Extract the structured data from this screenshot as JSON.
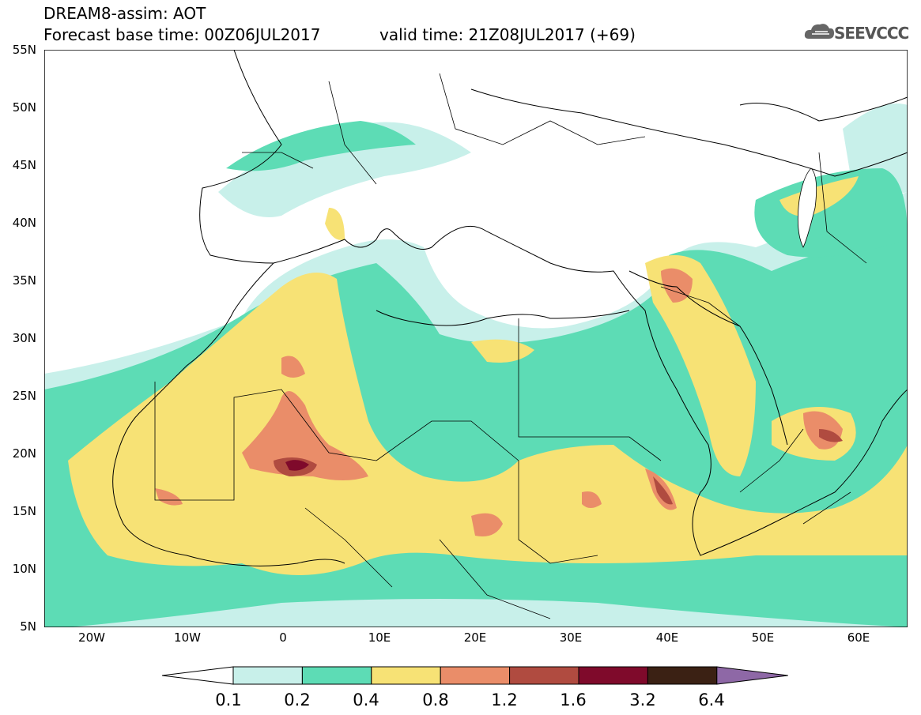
{
  "header": {
    "line1": "DREAM8-assim: AOT",
    "line2": "Forecast base time: 00Z06JUL2017",
    "valid": "valid time: 21Z08JUL2017 (+69)",
    "logo_text": "SEEVCCC"
  },
  "y_ticks": [
    "55N",
    "50N",
    "45N",
    "40N",
    "35N",
    "30N",
    "25N",
    "20N",
    "15N",
    "10N",
    "5N"
  ],
  "x_ticks": [
    "20W",
    "10W",
    "0",
    "10E",
    "20E",
    "30E",
    "40E",
    "50E",
    "60E"
  ],
  "colorbar": {
    "labels": [
      "0.1",
      "0.2",
      "0.4",
      "0.8",
      "1.2",
      "1.6",
      "3.2",
      "6.4"
    ],
    "colors": [
      "#ffffff",
      "#c8f0ea",
      "#5ddcb5",
      "#f7e275",
      "#ea8d69",
      "#b04b40",
      "#7f0a2b",
      "#3b2114",
      "#8e68a6"
    ]
  },
  "map": {
    "lon_range": [
      -25,
      65
    ],
    "lat_range": [
      5,
      55
    ],
    "variable": "AOT"
  }
}
